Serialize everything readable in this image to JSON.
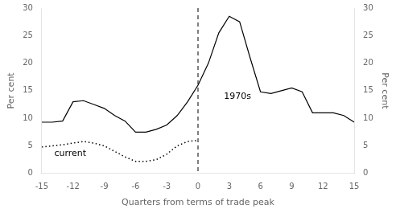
{
  "chart_data": {
    "type": "line",
    "xlabel": "Quarters from terms of trade peak",
    "ylabel": "Per cent",
    "y2label": "Per cent",
    "xlim": [
      -15,
      15
    ],
    "xticks": [
      -15,
      -12,
      -9,
      -6,
      -3,
      0,
      3,
      6,
      9,
      12,
      15
    ],
    "ylim": [
      0,
      30
    ],
    "yticks": [
      0,
      5,
      10,
      15,
      20,
      25,
      30
    ],
    "y2lim": [
      0,
      30
    ],
    "y2ticks": [
      0,
      5,
      10,
      15,
      20,
      25,
      30
    ],
    "grid": false,
    "vlines": [
      0
    ],
    "series": [
      {
        "name": "1970s",
        "color": "#000000",
        "line_style": "solid",
        "x": [
          -15,
          -14,
          -13,
          -12,
          -11,
          -10,
          -9,
          -8,
          -7,
          -6,
          -5,
          -4,
          -3,
          -2,
          -1,
          0,
          1,
          2,
          3,
          4,
          5,
          6,
          7,
          8,
          9,
          10,
          11,
          12,
          13,
          14,
          15
        ],
        "values": [
          9.3,
          9.3,
          9.5,
          13.0,
          13.2,
          12.5,
          11.8,
          10.5,
          9.5,
          7.5,
          7.5,
          8.0,
          8.8,
          10.5,
          13.0,
          16.0,
          20.0,
          25.5,
          28.5,
          27.5,
          21.0,
          14.8,
          14.5,
          15.0,
          15.5,
          14.8,
          11.0,
          11.0,
          11.0,
          10.5,
          9.3
        ]
      },
      {
        "name": "current",
        "color": "#000000",
        "line_style": "dotted",
        "x": [
          -15,
          -14,
          -13,
          -12,
          -11,
          -10,
          -9,
          -8,
          -7,
          -6,
          -5,
          -4,
          -3,
          -2,
          -1,
          0
        ],
        "values": [
          4.8,
          5.0,
          5.2,
          5.5,
          5.8,
          5.5,
          5.0,
          4.0,
          3.0,
          2.2,
          2.2,
          2.5,
          3.5,
          5.0,
          5.8,
          6.0
        ]
      }
    ]
  }
}
